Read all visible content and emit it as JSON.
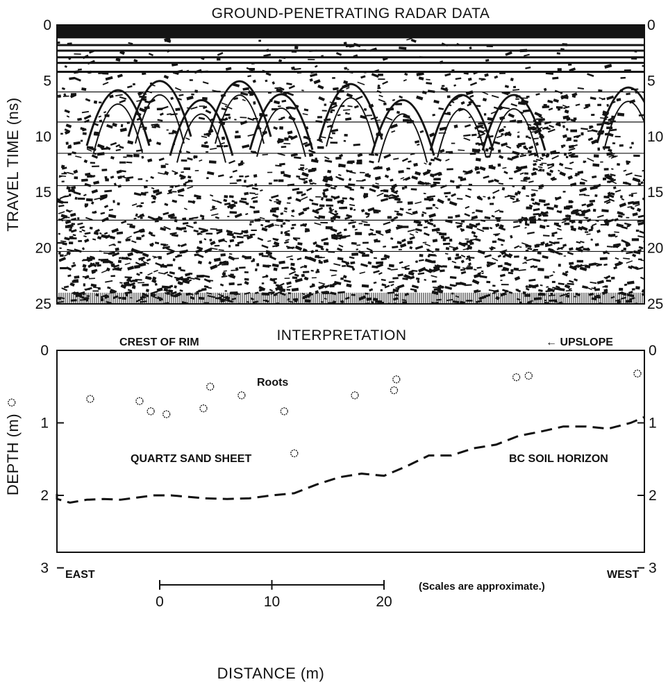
{
  "chart_data": [
    {
      "type": "heatmap",
      "title": "GROUND-PENETRATING RADAR DATA",
      "ylabel": "TRAVEL TIME (ns)",
      "ylim": [
        0,
        25
      ],
      "y_ticks": [
        "0",
        "5",
        "10",
        "15",
        "20",
        "25"
      ],
      "y_ticks_right": [
        "0",
        "5",
        "10",
        "15",
        "20",
        "25"
      ],
      "grid": false,
      "palette": {
        "ink": "#141414",
        "paper": "#ffffff"
      }
    },
    {
      "type": "line",
      "title": "INTERPRETATION",
      "ylabel": "DEPTH (m)",
      "xlabel": "DISTANCE (m)",
      "ylim": [
        0,
        3.9
      ],
      "y_ticks": [
        "0",
        "1",
        "2",
        "3"
      ],
      "y_ticks_right": [
        "0",
        "1",
        "2",
        "3"
      ],
      "x_scale_ticks": [
        "0",
        "10",
        "20"
      ],
      "annotations": {
        "crest": "CREST OF RIM",
        "upslope": "← UPSLOPE",
        "roots": "Roots",
        "sand": "QUARTZ SAND SHEET",
        "soil": "BC SOIL HORIZON",
        "east": "EAST",
        "west": "WEST",
        "scale_note": "(Scales are approximate.)"
      },
      "series": [
        {
          "style": "dashed",
          "x": [
            -14,
            -12.5,
            -11,
            -9.5,
            -8,
            -6.5,
            -5,
            -3.5,
            -2,
            -0.5,
            1,
            2.5,
            4,
            6,
            8,
            10,
            12,
            14,
            16,
            18,
            20,
            22,
            24,
            26,
            28,
            30,
            32,
            34,
            36,
            38,
            40,
            42,
            44
          ],
          "y": [
            1.98,
            2.03,
            2.06,
            2.05,
            2.1,
            2.06,
            2.05,
            2.06,
            2.03,
            2.0,
            2.0,
            2.02,
            2.04,
            2.05,
            2.04,
            2.0,
            1.97,
            1.85,
            1.75,
            1.7,
            1.73,
            1.6,
            1.45,
            1.45,
            1.35,
            1.3,
            1.18,
            1.12,
            1.05,
            1.05,
            1.08,
            1.0,
            0.92
          ]
        }
      ],
      "points": {
        "name": "Roots",
        "x": [
          -13.2,
          -6.2,
          -1.8,
          -0.8,
          0.6,
          3.9,
          4.5,
          7.3,
          11.1,
          12.0,
          17.4,
          20.9,
          21.1,
          31.8,
          32.9,
          42.6
        ],
        "y": [
          0.72,
          0.67,
          0.7,
          0.84,
          0.88,
          0.8,
          0.5,
          0.62,
          0.84,
          1.42,
          0.62,
          0.55,
          0.4,
          0.37,
          0.35,
          0.32
        ]
      }
    }
  ]
}
